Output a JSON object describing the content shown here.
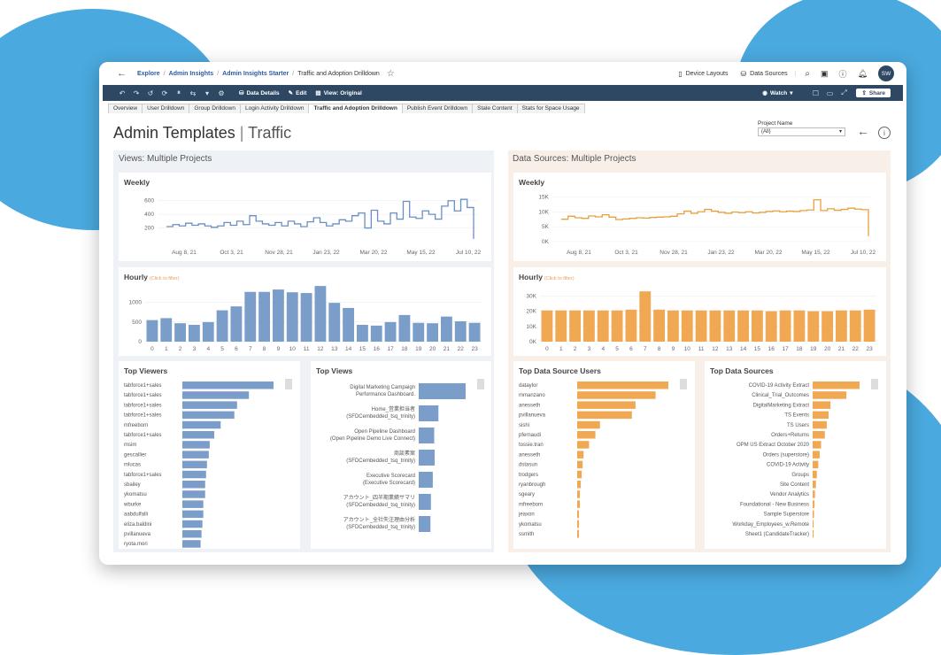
{
  "breadcrumb": {
    "back_icon": "arrow-left-icon",
    "items": [
      "Explore",
      "Admin Insights",
      "Admin Insights Starter"
    ],
    "current": "Traffic and Adoption Drilldown"
  },
  "topbar": {
    "device_layouts": "Device Layouts",
    "data_sources": "Data Sources",
    "avatar": "SW"
  },
  "toolbar": {
    "data_details": "Data Details",
    "edit": "Edit",
    "view": "View: Original",
    "watch": "Watch",
    "share": "Share"
  },
  "tabs": [
    "Overview",
    "User Drilldown",
    "Group Drilldown",
    "Login Activity Drilldown",
    "Traffic and Adoption Drilldown",
    "Publish Event Drilldown",
    "Stale Content",
    "Stats for Space Usage"
  ],
  "active_tab": 4,
  "page": {
    "title": "Admin Templates",
    "subtitle": "Traffic"
  },
  "filter": {
    "label": "Project Name",
    "value": "(All)"
  },
  "colors": {
    "blue": "#7b9dc9",
    "orange": "#f0a952",
    "blue_line": "#6b8fc4",
    "orange_line": "#e8a03f"
  },
  "views": {
    "section_title": "Views: Multiple Projects",
    "weekly_title": "Weekly",
    "hourly_title": "Hourly",
    "hourly_hint": "(Click to filter)",
    "top_viewers_title": "Top Viewers",
    "top_views_title": "Top Views"
  },
  "datasources": {
    "section_title": "Data Sources: Multiple Projects",
    "weekly_title": "Weekly",
    "hourly_title": "Hourly",
    "hourly_hint": "(Click to filter)",
    "top_users_title": "Top Data Source Users",
    "top_sources_title": "Top Data Sources"
  },
  "chart_data": [
    {
      "type": "line",
      "title": "Weekly",
      "x_ticks": [
        "Aug 8, 21",
        "Oct 3, 21",
        "Nov 28, 21",
        "Jan 23, 22",
        "Mar 20, 22",
        "May 15, 22",
        "Jul 10, 22"
      ],
      "y_ticks": [
        200,
        400,
        600
      ],
      "ylim": [
        0,
        700
      ],
      "values": [
        220,
        250,
        230,
        270,
        240,
        260,
        230,
        210,
        230,
        280,
        240,
        300,
        250,
        380,
        300,
        260,
        240,
        280,
        230,
        300,
        260,
        220,
        290,
        350,
        280,
        230,
        260,
        320,
        300,
        380,
        420,
        200,
        460,
        300,
        260,
        420,
        330,
        590,
        360,
        340,
        450,
        400,
        330,
        520,
        600,
        450,
        620,
        500,
        40
      ]
    },
    {
      "type": "bar",
      "title": "Hourly",
      "categories": [
        "0",
        "1",
        "2",
        "3",
        "4",
        "5",
        "6",
        "7",
        "8",
        "9",
        "10",
        "11",
        "12",
        "13",
        "14",
        "15",
        "16",
        "17",
        "18",
        "19",
        "20",
        "21",
        "22",
        "23"
      ],
      "y_ticks": [
        0,
        500,
        1000
      ],
      "ylim": [
        0,
        1400
      ],
      "values": [
        550,
        600,
        470,
        430,
        500,
        800,
        900,
        1270,
        1270,
        1330,
        1260,
        1240,
        1420,
        990,
        860,
        430,
        410,
        500,
        680,
        480,
        470,
        640,
        520,
        480
      ]
    },
    {
      "type": "bar",
      "title": "Top Viewers",
      "orientation": "horizontal",
      "categories": [
        "tabforce1+sales",
        "tabforce1+sales",
        "tabforce1+sales",
        "tabforce1+sales",
        "mfreeborn",
        "tabforce1+sales",
        "msim",
        "gescallier",
        "mlucas",
        "tabforce1+sales",
        "sbailey",
        "ykomatsu",
        "wburke",
        "aabdulfalli",
        "eliza.baldini",
        "pvillanueva",
        "ryota.mori"
      ],
      "values": [
        100,
        73,
        60,
        57,
        42,
        35,
        30,
        29,
        27,
        26,
        25,
        25,
        23,
        23,
        22,
        21,
        20
      ]
    },
    {
      "type": "bar",
      "title": "Top Views",
      "orientation": "horizontal",
      "categories": [
        "Digital Marketing Campaign Performance Dashboard.",
        "Home_営業担当者 (SFDCembedded_tsq_trinity)",
        "Open Pipeline Dashboard (Open Pipeline Demo Live Connect)",
        "商談素案 (SFDCembedded_tsq_trinity)",
        "Executive Scorecard (Executive Scorecard)",
        "アカウント_四半期業績サマリ (SFDCembedded_tsq_trinity)",
        "アカウント_全社失注理由分析 (SFDCembedded_tsq_trinity)"
      ],
      "values": [
        100,
        42,
        33,
        34,
        30,
        26,
        25
      ]
    },
    {
      "type": "line",
      "title": "Weekly",
      "x_ticks": [
        "Aug 8, 21",
        "Oct 3, 21",
        "Nov 28, 21",
        "Jan 23, 22",
        "Mar 20, 22",
        "May 15, 22",
        "Jul 10, 22"
      ],
      "y_ticks": [
        "0K",
        "5K",
        "10K",
        "15K"
      ],
      "ylim": [
        0,
        16000
      ],
      "values": [
        7500,
        8500,
        8000,
        7800,
        8600,
        8300,
        9000,
        8200,
        7400,
        7600,
        7800,
        8000,
        7900,
        8100,
        8200,
        8300,
        8500,
        9300,
        10200,
        9500,
        10000,
        10800,
        10200,
        9800,
        9500,
        9900,
        9700,
        10000,
        9600,
        9800,
        10100,
        10300,
        10000,
        10200,
        10100,
        10400,
        10600,
        14000,
        10400,
        11000,
        10500,
        10800,
        11200,
        10900,
        10700,
        1800
      ]
    },
    {
      "type": "bar",
      "title": "Hourly",
      "categories": [
        "0",
        "1",
        "2",
        "3",
        "4",
        "5",
        "6",
        "7",
        "8",
        "9",
        "10",
        "11",
        "12",
        "13",
        "14",
        "15",
        "16",
        "17",
        "18",
        "19",
        "20",
        "21",
        "22",
        "23"
      ],
      "y_ticks": [
        "0K",
        "10K",
        "20K",
        "30K"
      ],
      "ylim": [
        0,
        36000
      ],
      "values": [
        20500,
        20500,
        20500,
        20500,
        20500,
        20500,
        21000,
        33000,
        21000,
        20500,
        20500,
        20500,
        20500,
        20500,
        20500,
        20500,
        20000,
        20500,
        20500,
        20000,
        20000,
        20500,
        20500,
        21000
      ]
    },
    {
      "type": "bar",
      "title": "Top Data Source Users",
      "orientation": "horizontal",
      "categories": [
        "dataylor",
        "mmanzano",
        "anesseth",
        "pvillanueva",
        "sishi",
        "pfernaudi",
        "tossie.tran",
        "anesseth",
        "dstasun",
        "trodgers",
        "ryanbrough",
        "sgeary",
        "mfreeborn",
        "jeaxon",
        "ykomatsu",
        "ssmith"
      ],
      "values": [
        100,
        86,
        64,
        60,
        25,
        20,
        13,
        7,
        6,
        5,
        4,
        3,
        3,
        2,
        2,
        2
      ]
    },
    {
      "type": "bar",
      "title": "Top Data Sources",
      "orientation": "horizontal",
      "categories": [
        "COVID-19 Activity Extract",
        "Clinical_Trial_Outcomes",
        "DigitalMarketing Extract",
        "TS Events",
        "TS Users",
        "Orders+Returns",
        "OPM US Extract October 2020",
        "Orders (superstore)",
        "COVID-19 Activity",
        "Groups",
        "Site Content",
        "Vendor Analytics",
        "Foundational - New Business",
        "Sample Superstore",
        "Workday_Employees_w.Remote",
        "Sheet1 (CandidateTracker)"
      ],
      "values": [
        100,
        72,
        38,
        34,
        30,
        26,
        18,
        15,
        12,
        9,
        7,
        5,
        4,
        3,
        2,
        2
      ]
    }
  ]
}
